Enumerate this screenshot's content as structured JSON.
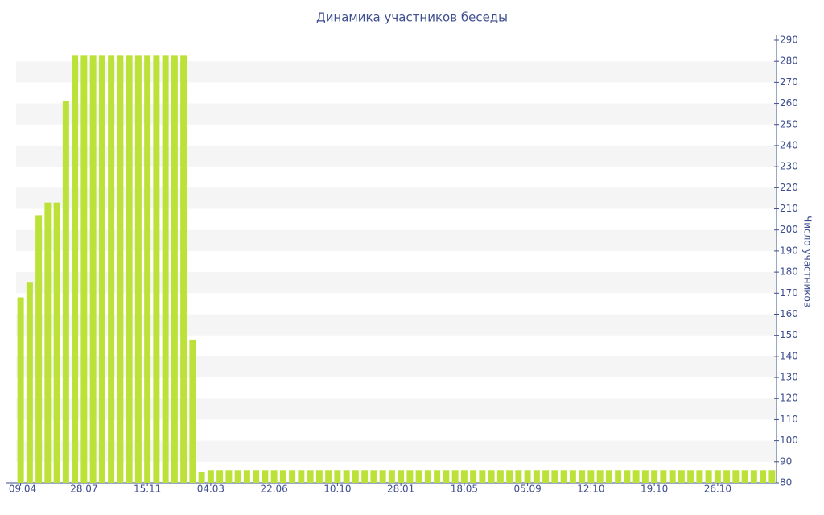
{
  "chart_data": {
    "type": "bar",
    "title": "Динамика участников беседы",
    "y_label": "Число участников",
    "categories": [
      "09.04",
      null,
      null,
      null,
      null,
      null,
      null,
      "28.07",
      null,
      null,
      null,
      null,
      null,
      null,
      "15.11",
      null,
      null,
      null,
      null,
      null,
      null,
      "04.03",
      null,
      null,
      null,
      null,
      null,
      null,
      "22.06",
      null,
      null,
      null,
      null,
      null,
      null,
      "10.10",
      null,
      null,
      null,
      null,
      null,
      null,
      "28.01",
      null,
      null,
      null,
      null,
      null,
      null,
      "18.05",
      null,
      null,
      null,
      null,
      null,
      null,
      "05.09",
      null,
      null,
      null,
      null,
      null,
      null,
      "12.10",
      null,
      null,
      null,
      null,
      null,
      null,
      "19.10",
      null,
      null,
      null,
      null,
      null,
      null,
      "26.10",
      null,
      null,
      null,
      null,
      null,
      null
    ],
    "values": [
      168,
      175,
      207,
      213,
      213,
      261,
      283,
      283,
      283,
      283,
      283,
      283,
      283,
      283,
      283,
      283,
      283,
      283,
      283,
      148,
      85,
      86,
      86,
      86,
      86,
      86,
      86,
      86,
      86,
      86,
      86,
      86,
      86,
      86,
      86,
      86,
      86,
      86,
      86,
      86,
      86,
      86,
      86,
      86,
      86,
      86,
      86,
      86,
      86,
      86,
      86,
      86,
      86,
      86,
      86,
      86,
      86,
      86,
      86,
      86,
      86,
      86,
      86,
      86,
      86,
      86,
      86,
      86,
      86,
      86,
      86,
      86,
      86,
      86,
      86,
      86,
      86,
      86,
      86,
      86,
      86,
      86,
      86,
      86
    ],
    "color": "#bce23a",
    "ylim": [
      80,
      290
    ],
    "yticks": [
      80,
      90,
      100,
      110,
      120,
      130,
      140,
      150,
      160,
      170,
      180,
      190,
      200,
      210,
      220,
      230,
      240,
      250,
      260,
      270,
      280,
      290
    ],
    "y_axis_side": "right",
    "grid": "stripes"
  }
}
